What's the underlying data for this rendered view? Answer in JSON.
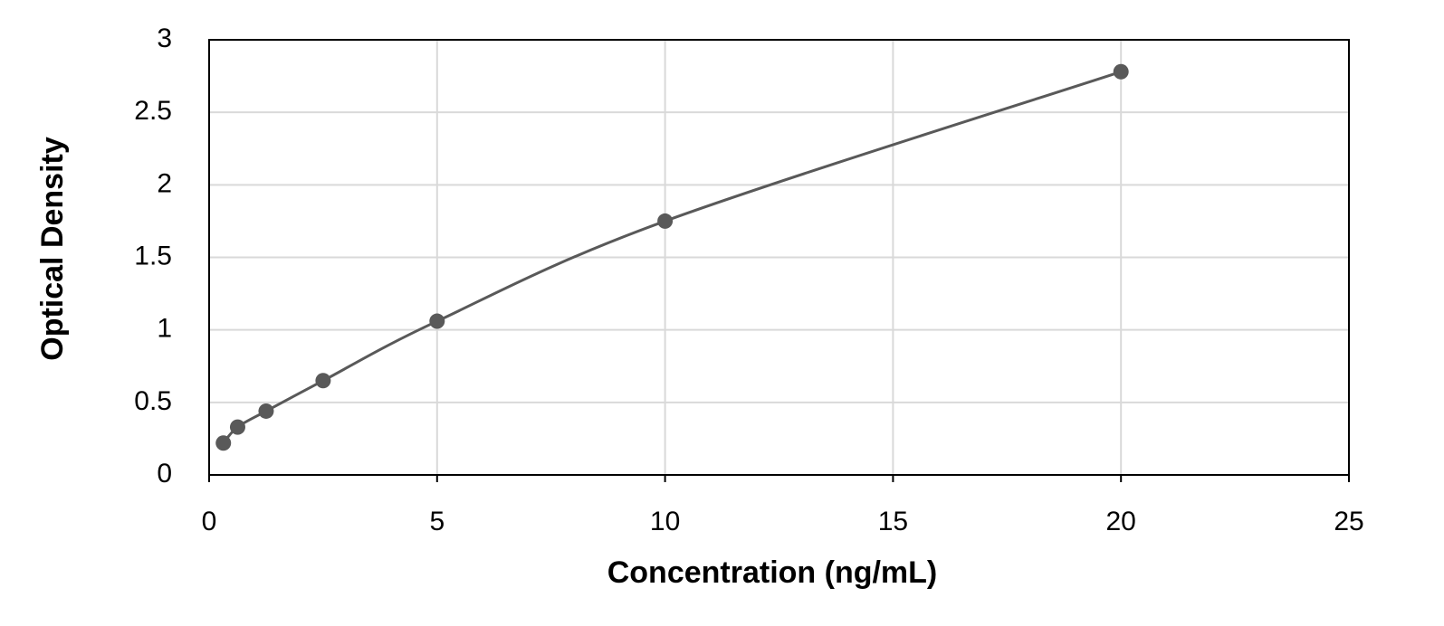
{
  "chart_data": {
    "type": "scatter",
    "x_label": "Concentration (ng/mL)",
    "y_label": "Optical Density",
    "x": [
      0.3125,
      0.625,
      1.25,
      2.5,
      5,
      10,
      20
    ],
    "series": [
      {
        "color": "#595959",
        "values": [
          0.22,
          0.33,
          0.44,
          0.65,
          1.06,
          1.75,
          2.78
        ]
      }
    ],
    "smooth_line": true,
    "xlim": [
      0,
      25
    ],
    "xticks": [
      0,
      5,
      10,
      15,
      20,
      25
    ],
    "ylim": [
      0,
      3
    ],
    "yticks": [
      0,
      0.5,
      1,
      1.5,
      2,
      2.5,
      3
    ],
    "grid": true
  }
}
